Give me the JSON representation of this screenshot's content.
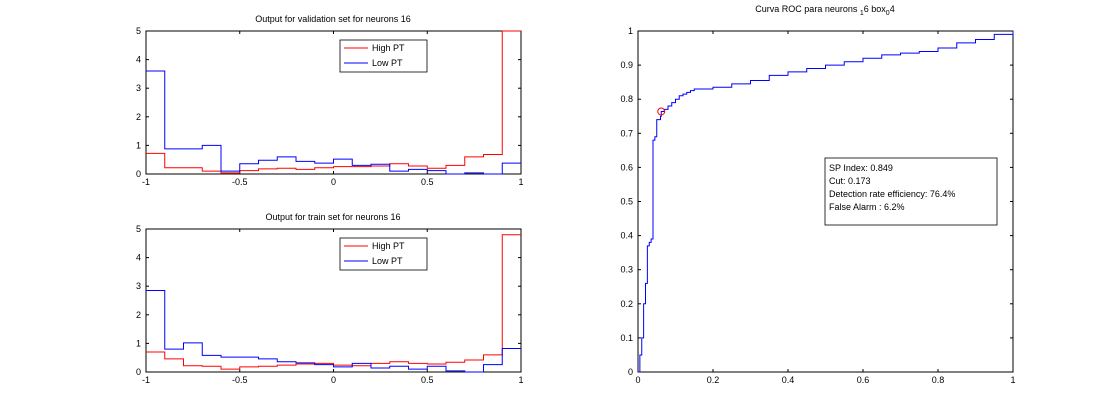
{
  "colors": {
    "high": "#ff0000",
    "low": "#0000ff",
    "roc": "#0000ff",
    "marker": "#ff0000"
  },
  "chart_data": [
    {
      "type": "histogram",
      "title": "Output for validation set for neurons 16",
      "xlim": [
        -1,
        1
      ],
      "ylim": [
        0,
        5
      ],
      "xticks": [
        -1,
        -0.5,
        0,
        0.5,
        1
      ],
      "xtick_labels": [
        "-1",
        "-0.5",
        "0",
        "0.5",
        "1"
      ],
      "yticks": [
        0,
        1,
        2,
        3,
        4,
        5
      ],
      "ytick_labels": [
        "0",
        "1",
        "2",
        "3",
        "4",
        "5"
      ],
      "legend_position": "top-right",
      "bin_edges": [
        -1,
        -0.9,
        -0.8,
        -0.7,
        -0.6,
        -0.5,
        -0.4,
        -0.3,
        -0.2,
        -0.1,
        0,
        0.1,
        0.2,
        0.3,
        0.4,
        0.5,
        0.6,
        0.7,
        0.8,
        0.9,
        1
      ],
      "series": [
        {
          "name": "High PT",
          "color_key": "high",
          "values": [
            0.72,
            0.22,
            0.22,
            0.1,
            0.04,
            0.12,
            0.18,
            0.2,
            0.16,
            0.22,
            0.26,
            0.26,
            0.28,
            0.36,
            0.28,
            0.2,
            0.3,
            0.6,
            0.68,
            5.0
          ]
        },
        {
          "name": "Low PT",
          "color_key": "low",
          "values": [
            3.6,
            0.88,
            0.88,
            1.0,
            0.1,
            0.36,
            0.48,
            0.6,
            0.44,
            0.38,
            0.52,
            0.3,
            0.34,
            0.1,
            0.16,
            0.12,
            0.0,
            0.04,
            0.0,
            0.38
          ]
        }
      ]
    },
    {
      "type": "histogram",
      "title": "Output for train set for neurons 16",
      "xlim": [
        -1,
        1
      ],
      "ylim": [
        0,
        5
      ],
      "xticks": [
        -1,
        -0.5,
        0,
        0.5,
        1
      ],
      "xtick_labels": [
        "-1",
        "-0.5",
        "0",
        "0.5",
        "1"
      ],
      "yticks": [
        0,
        1,
        2,
        3,
        4,
        5
      ],
      "ytick_labels": [
        "0",
        "1",
        "2",
        "3",
        "4",
        "5"
      ],
      "legend_position": "top-right",
      "bin_edges": [
        -1,
        -0.9,
        -0.8,
        -0.7,
        -0.6,
        -0.5,
        -0.4,
        -0.3,
        -0.2,
        -0.1,
        0,
        0.1,
        0.2,
        0.3,
        0.4,
        0.5,
        0.6,
        0.7,
        0.8,
        0.9,
        1
      ],
      "series": [
        {
          "name": "High PT",
          "color_key": "high",
          "values": [
            0.7,
            0.46,
            0.22,
            0.2,
            0.1,
            0.18,
            0.2,
            0.24,
            0.28,
            0.3,
            0.24,
            0.22,
            0.3,
            0.36,
            0.3,
            0.28,
            0.34,
            0.42,
            0.6,
            4.8
          ]
        },
        {
          "name": "Low PT",
          "color_key": "low",
          "values": [
            2.85,
            0.8,
            1.02,
            0.58,
            0.52,
            0.52,
            0.46,
            0.36,
            0.32,
            0.26,
            0.18,
            0.3,
            0.14,
            0.2,
            0.1,
            0.2,
            0.04,
            0.0,
            0.26,
            0.82
          ]
        }
      ]
    },
    {
      "type": "line",
      "title_main": "Curva ROC para neurons ",
      "title_sub1": "1",
      "title_mid": "6 box",
      "title_sub2": "0",
      "title_end": "4",
      "xlim": [
        0,
        1
      ],
      "ylim": [
        0,
        1
      ],
      "xticks": [
        0,
        0.2,
        0.4,
        0.6,
        0.8,
        1
      ],
      "xtick_labels": [
        "0",
        "0.2",
        "0.4",
        "0.6",
        "0.8",
        "1"
      ],
      "yticks": [
        0,
        0.1,
        0.2,
        0.3,
        0.4,
        0.5,
        0.6,
        0.7,
        0.8,
        0.9,
        1
      ],
      "ytick_labels": [
        "0",
        "0.1",
        "0.2",
        "0.3",
        "0.4",
        "0.5",
        "0.6",
        "0.7",
        "0.8",
        "0.9",
        "1"
      ],
      "x": [
        0,
        0.005,
        0.01,
        0.015,
        0.02,
        0.025,
        0.03,
        0.035,
        0.04,
        0.045,
        0.05,
        0.055,
        0.06,
        0.062,
        0.07,
        0.08,
        0.09,
        0.1,
        0.11,
        0.12,
        0.13,
        0.14,
        0.15,
        0.16,
        0.17,
        0.18,
        0.2,
        0.25,
        0.3,
        0.35,
        0.4,
        0.45,
        0.5,
        0.55,
        0.6,
        0.65,
        0.7,
        0.75,
        0.8,
        0.85,
        0.9,
        0.95,
        1.0
      ],
      "y": [
        0,
        0.05,
        0.1,
        0.2,
        0.26,
        0.37,
        0.38,
        0.39,
        0.68,
        0.69,
        0.74,
        0.74,
        0.75,
        0.764,
        0.77,
        0.78,
        0.79,
        0.8,
        0.81,
        0.815,
        0.82,
        0.825,
        0.83,
        0.83,
        0.83,
        0.83,
        0.835,
        0.845,
        0.855,
        0.87,
        0.88,
        0.89,
        0.9,
        0.91,
        0.92,
        0.93,
        0.935,
        0.94,
        0.95,
        0.965,
        0.975,
        0.99,
        1.0
      ],
      "marker": {
        "x": 0.062,
        "y": 0.764
      },
      "info_box": [
        "SP Index: 0.849",
        "Cut: 0.173",
        "Detection rate efficiency: 76.4%",
        "False Alarm :  6.2%"
      ]
    }
  ]
}
